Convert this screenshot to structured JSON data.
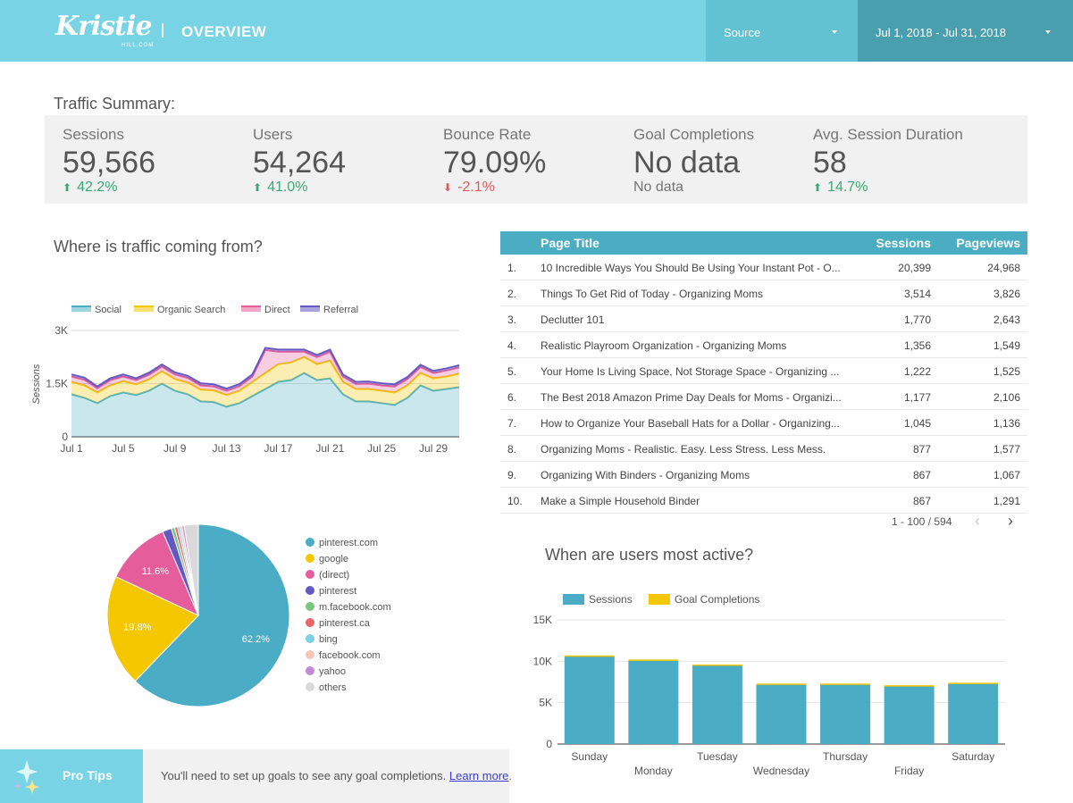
{
  "header": {
    "logo_text": "Kristie",
    "logo_subtext": "HILL.COM",
    "title": "OVERVIEW",
    "source_label": "Source",
    "date_range": "Jul 1, 2018 - Jul 31, 2018"
  },
  "summary": {
    "title": "Traffic Summary:",
    "metrics": [
      {
        "label": "Sessions",
        "value": "59,566",
        "delta": "42.2%",
        "direction": "up"
      },
      {
        "label": "Users",
        "value": "54,264",
        "delta": "41.0%",
        "direction": "up"
      },
      {
        "label": "Bounce Rate",
        "value": "79.09%",
        "delta": "-2.1%",
        "direction": "down"
      },
      {
        "label": "Goal Completions",
        "value": "No data",
        "delta": "No data",
        "direction": "none"
      },
      {
        "label": "Avg. Session Duration",
        "value": "58",
        "delta": "14.7%",
        "direction": "up"
      }
    ]
  },
  "traffic_section": {
    "title": "Where is traffic coming from?"
  },
  "active_section": {
    "title": "When are users most active?"
  },
  "table": {
    "columns": [
      "Page Title",
      "Sessions",
      "Pageviews"
    ],
    "rows": [
      {
        "num": "1.",
        "title": "10 Incredible Ways You Should Be Using Your Instant Pot - O...",
        "sessions": "20,399",
        "pageviews": "24,968"
      },
      {
        "num": "2.",
        "title": "Things To Get Rid of Today - Organizing Moms",
        "sessions": "3,514",
        "pageviews": "3,826"
      },
      {
        "num": "3.",
        "title": "Declutter 101",
        "sessions": "1,770",
        "pageviews": "2,643"
      },
      {
        "num": "4.",
        "title": "Realistic Playroom Organization - Organizing Moms",
        "sessions": "1,356",
        "pageviews": "1,549"
      },
      {
        "num": "5.",
        "title": "Your Home Is Living Space, Not Storage Space - Organizing ...",
        "sessions": "1,222",
        "pageviews": "1,525"
      },
      {
        "num": "6.",
        "title": "The Best 2018 Amazon Prime Day Deals for Moms - Organizi...",
        "sessions": "1,177",
        "pageviews": "2,106"
      },
      {
        "num": "7.",
        "title": "How to Organize Your Baseball Hats for a Dollar - Organizing...",
        "sessions": "1,045",
        "pageviews": "1,136"
      },
      {
        "num": "8.",
        "title": "Organizing Moms - Realistic. Easy. Less Stress. Less Mess.",
        "sessions": "877",
        "pageviews": "1,577"
      },
      {
        "num": "9.",
        "title": "Organizing With Binders - Organizing Moms",
        "sessions": "867",
        "pageviews": "1,067"
      },
      {
        "num": "10.",
        "title": "Make a Simple Household Binder",
        "sessions": "867",
        "pageviews": "1,291"
      }
    ],
    "pager": "1 - 100 / 594",
    "prev_icon": "chevron-left-icon",
    "next_icon": "chevron-right-icon"
  },
  "tips": {
    "label": "Pro Tips",
    "text": "You'll need to set up goals to see any goal completions.",
    "link": "Learn more",
    "suffix": ".",
    "icon": "sparkle-icon"
  },
  "colors": {
    "header": "#78d3e4",
    "source_bg": "#62c1d3",
    "date_bg": "#4a9fae",
    "table_header": "#4aadc2",
    "up": "#3aa877",
    "down": "#e05a5a"
  },
  "chart_data": [
    {
      "type": "area",
      "stacked": true,
      "ylabel": "Sessions",
      "yticks": [
        "0",
        "1.5K",
        "3K"
      ],
      "ylim": [
        0,
        3000
      ],
      "xticks": [
        "Jul 1",
        "Jul 5",
        "Jul 9",
        "Jul 13",
        "Jul 17",
        "Jul 21",
        "Jul 25",
        "Jul 29"
      ],
      "x": [
        1,
        2,
        3,
        4,
        5,
        6,
        7,
        8,
        9,
        10,
        11,
        12,
        13,
        14,
        15,
        16,
        17,
        18,
        19,
        20,
        21,
        22,
        23,
        24,
        25,
        26,
        27,
        28,
        29,
        30,
        31
      ],
      "legend_position": "top",
      "series": [
        {
          "name": "Social",
          "color": "#4bb0c4",
          "values": [
            1200,
            1100,
            950,
            1150,
            1250,
            1180,
            1300,
            1500,
            1300,
            1200,
            1000,
            980,
            850,
            950,
            1150,
            1350,
            1550,
            1600,
            1800,
            1600,
            1650,
            1200,
            1000,
            1000,
            950,
            900,
            1100,
            1450,
            1300,
            1350,
            1400
          ]
        },
        {
          "name": "Organic Search",
          "color": "#f4c700",
          "values": [
            350,
            350,
            300,
            300,
            320,
            300,
            320,
            350,
            330,
            330,
            330,
            330,
            330,
            350,
            400,
            450,
            500,
            500,
            450,
            450,
            500,
            350,
            350,
            350,
            350,
            350,
            350,
            350,
            350,
            350,
            380
          ]
        },
        {
          "name": "Direct",
          "color": "#e55d9a",
          "values": [
            150,
            160,
            120,
            150,
            130,
            120,
            130,
            130,
            130,
            130,
            120,
            110,
            120,
            130,
            150,
            650,
            350,
            300,
            150,
            200,
            250,
            150,
            140,
            150,
            150,
            170,
            180,
            170,
            150,
            170,
            180
          ]
        },
        {
          "name": "Referral",
          "color": "#6459c2",
          "values": [
            60,
            60,
            50,
            50,
            60,
            50,
            60,
            60,
            60,
            60,
            60,
            60,
            60,
            60,
            60,
            60,
            60,
            60,
            60,
            60,
            60,
            60,
            60,
            60,
            60,
            60,
            60,
            60,
            60,
            60,
            60
          ]
        }
      ]
    },
    {
      "type": "pie",
      "slices": [
        {
          "label": "pinterest.com",
          "value": 62.2,
          "color": "#4bacc6",
          "show_label": true
        },
        {
          "label": "google",
          "value": 19.8,
          "color": "#f4c700",
          "show_label": true
        },
        {
          "label": "(direct)",
          "value": 11.6,
          "color": "#e55d9a",
          "show_label": true
        },
        {
          "label": "pinterest",
          "value": 1.6,
          "color": "#6459c2",
          "show_label": false
        },
        {
          "label": "m.facebook.com",
          "value": 0.6,
          "color": "#7bc67e",
          "show_label": false
        },
        {
          "label": "pinterest.ca",
          "value": 0.5,
          "color": "#e8656a",
          "show_label": false
        },
        {
          "label": "bing",
          "value": 0.4,
          "color": "#7dd1e3",
          "show_label": false
        },
        {
          "label": "facebook.com",
          "value": 0.4,
          "color": "#f4c6b5",
          "show_label": false
        },
        {
          "label": "yahoo",
          "value": 0.4,
          "color": "#c38ad6",
          "show_label": false
        },
        {
          "label": "others",
          "value": 2.5,
          "color": "#d9d9d9",
          "show_label": false
        }
      ],
      "legend_position": "right"
    },
    {
      "type": "bar",
      "categories": [
        "Sunday",
        "Monday",
        "Tuesday",
        "Wednesday",
        "Thursday",
        "Friday",
        "Saturday"
      ],
      "series": [
        {
          "name": "Sessions",
          "color": "#4bacc6",
          "values": [
            10600,
            10100,
            9500,
            7200,
            7200,
            7000,
            7300
          ]
        },
        {
          "name": "Goal Completions",
          "color": "#f4c700",
          "values": [
            0,
            0,
            0,
            0,
            0,
            0,
            0
          ]
        }
      ],
      "yticks": [
        "0",
        "5K",
        "10K",
        "15K"
      ],
      "ylim": [
        0,
        15000
      ],
      "legend_position": "top-left"
    }
  ]
}
